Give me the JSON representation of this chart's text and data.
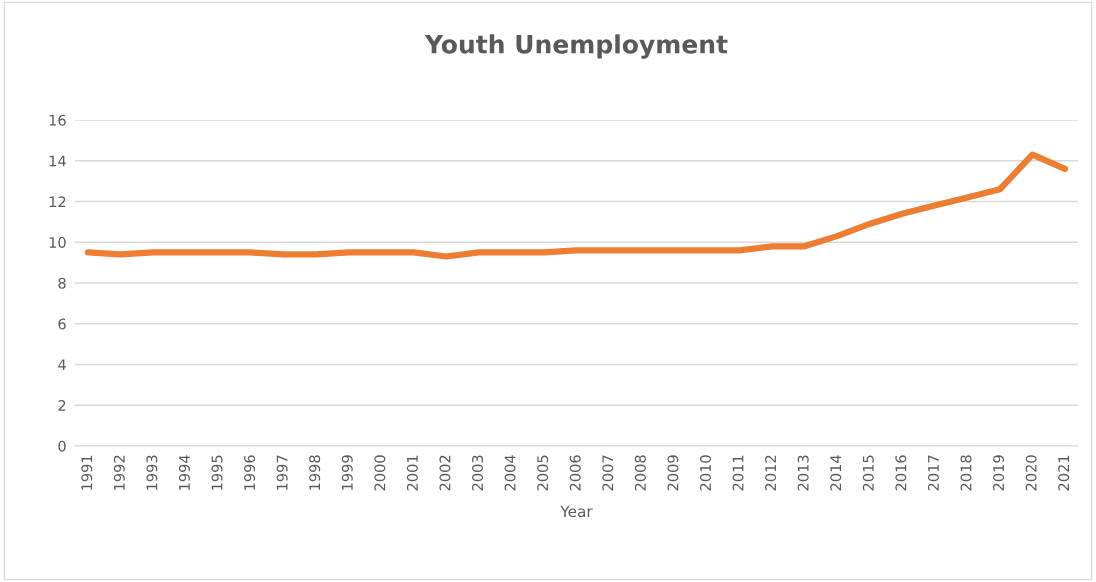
{
  "chart_data": {
    "type": "line",
    "title": "Youth Unemployment",
    "xlabel": "Year",
    "categories": [
      "1991",
      "1992",
      "1993",
      "1994",
      "1995",
      "1996",
      "1997",
      "1998",
      "1999",
      "2000",
      "2001",
      "2002",
      "2003",
      "2004",
      "2005",
      "2006",
      "2007",
      "2008",
      "2009",
      "2010",
      "2011",
      "2012",
      "2013",
      "2014",
      "2015",
      "2016",
      "2017",
      "2018",
      "2019",
      "2020",
      "2021"
    ],
    "series": [
      {
        "color": "#ed7d31",
        "values": [
          9.5,
          9.4,
          9.5,
          9.5,
          9.5,
          9.5,
          9.4,
          9.4,
          9.5,
          9.5,
          9.5,
          9.3,
          9.5,
          9.5,
          9.5,
          9.6,
          9.6,
          9.6,
          9.6,
          9.6,
          9.6,
          9.8,
          9.8,
          10.3,
          10.9,
          11.4,
          11.8,
          12.2,
          12.6,
          14.3,
          13.6
        ]
      }
    ],
    "ylim": [
      0,
      16
    ],
    "yticks": [
      0,
      2,
      4,
      6,
      8,
      10,
      12,
      14,
      16
    ],
    "grid": "y",
    "marker": "none",
    "line_style": "solid"
  }
}
